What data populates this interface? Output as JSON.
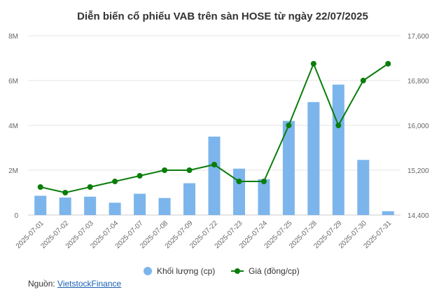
{
  "chart_data": {
    "type": "bar+line",
    "title": "Diễn biến cổ phiếu VAB trên sàn HOSE từ ngày 22/07/2025",
    "categories": [
      "2025-07-01",
      "2025-07-02",
      "2025-07-03",
      "2025-07-04",
      "2025-07-07",
      "2025-07-08",
      "2025-07-09",
      "2025-07-22",
      "2025-07-23",
      "2025-07-24",
      "2025-07-25",
      "2025-07-28",
      "2025-07-29",
      "2025-07-30",
      "2025-07-31"
    ],
    "series": [
      {
        "name": "Khối lượng (cp)",
        "type": "bar",
        "axis": "left",
        "color": "#7cb5ec",
        "values": [
          860000,
          780000,
          820000,
          550000,
          950000,
          760000,
          1420000,
          3500000,
          2070000,
          1600000,
          4200000,
          5040000,
          5820000,
          2460000,
          170000
        ]
      },
      {
        "name": "Giá (đồng/cp)",
        "type": "line",
        "axis": "right",
        "color": "#0a7d0a",
        "values": [
          14900,
          14800,
          14900,
          15000,
          15100,
          15200,
          15200,
          15300,
          15000,
          15000,
          16000,
          17100,
          16000,
          16800,
          17100
        ]
      }
    ],
    "y_left": {
      "min": 0,
      "max": 8000000,
      "ticks": [
        0,
        2000000,
        4000000,
        6000000,
        8000000
      ],
      "tick_labels": [
        "0",
        "2M",
        "4M",
        "6M",
        "8M"
      ]
    },
    "y_right": {
      "min": 14400,
      "max": 17600,
      "ticks": [
        14400,
        15200,
        16000,
        16800,
        17600
      ],
      "tick_labels": [
        "14,400",
        "15,200",
        "16,000",
        "16,800",
        "17,600"
      ]
    },
    "grid": true,
    "legend_position": "bottom"
  },
  "source": {
    "label": "Nguồn:",
    "link_text": "VietstockFinance"
  }
}
